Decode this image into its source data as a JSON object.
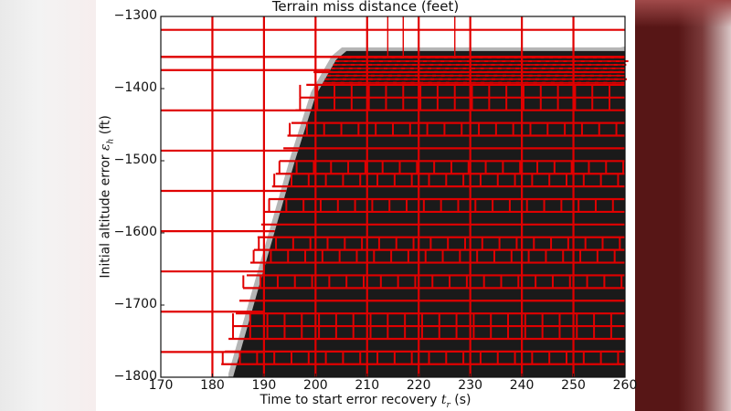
{
  "chart_data": {
    "type": "heatmap",
    "title": "Terrain miss distance (feet)",
    "xlabel": "Time to start error recovery t_r (s)",
    "ylabel": "Initial altitude error ε_h (ft)",
    "xlim": [
      170,
      260
    ],
    "ylim": [
      -1800,
      -1300
    ],
    "x_ticks": [
      170,
      180,
      190,
      200,
      210,
      220,
      230,
      240,
      250,
      260
    ],
    "y_ticks": [
      -1300,
      -1400,
      -1500,
      -1600,
      -1700,
      -1800
    ],
    "grid": false,
    "legend": null,
    "regions": [
      {
        "name": "unsafe (black)",
        "color": "#1a1a1a",
        "boundary": [
          [
            184,
            -1800
          ],
          [
            188,
            -1700
          ],
          [
            192,
            -1600
          ],
          [
            196,
            -1500
          ],
          [
            200,
            -1410
          ],
          [
            204,
            -1360
          ],
          [
            206,
            -1348
          ],
          [
            260,
            -1348
          ]
        ]
      },
      {
        "name": "transition (gray)",
        "color": "#b8b8b8"
      },
      {
        "name": "safe (white)",
        "color": "#ffffff"
      }
    ],
    "overlay": {
      "type": "adaptive partition rectangles",
      "color": "#e00000",
      "coarse_cell": {
        "dx": 10,
        "dy": 56
      },
      "fine_cell_inside_unsafe": {
        "dx": 3.33,
        "dy": 14
      }
    }
  },
  "text": {
    "title": "Terrain miss distance (feet)",
    "xlabel_prefix": "Time to start error recovery ",
    "xlabel_sym": "t",
    "xlabel_sub": "r",
    "xlabel_suffix": " (s)",
    "ylabel_prefix": "Initial altitude error ",
    "ylabel_sym": "ε",
    "ylabel_sub": "h",
    "ylabel_suffix": " (ft)"
  },
  "ticks": {
    "x": [
      "170",
      "180",
      "190",
      "200",
      "210",
      "220",
      "230",
      "240",
      "250",
      "260"
    ],
    "y": [
      "−1300",
      "−1400",
      "−1500",
      "−1600",
      "−1700",
      "−1800"
    ]
  },
  "colors": {
    "grid_red": "#e00000",
    "unsafe": "#1a1a1a",
    "halo": "#b5b5b5"
  }
}
